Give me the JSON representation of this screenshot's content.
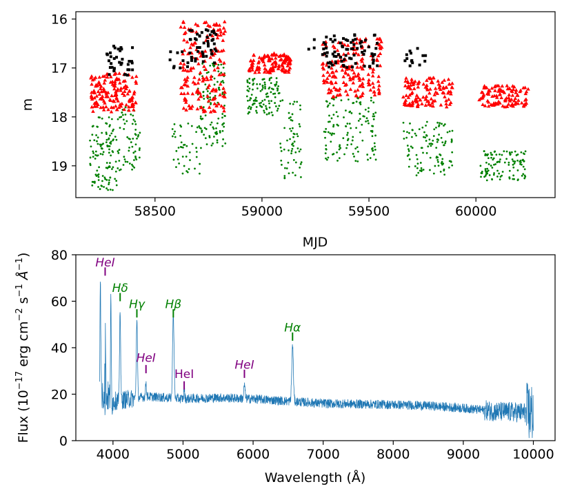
{
  "colors": {
    "black": "#000000",
    "red": "#ff0000",
    "green": "#008000",
    "spectrum": "#1f77b4",
    "purple": "#800080",
    "linegreen": "#008000"
  },
  "chart_data": [
    {
      "type": "scatter",
      "title": "",
      "xlabel": "MJD",
      "ylabel": "m",
      "xlim": [
        58130,
        60370
      ],
      "ylim": [
        19.65,
        15.85
      ],
      "y_inverted": true,
      "xticks": [
        "58500",
        "59000",
        "59500",
        "60000"
      ],
      "xtick_values": [
        58500,
        59000,
        59500,
        60000
      ],
      "yticks": [
        "16",
        "17",
        "18",
        "19"
      ],
      "ytick_values": [
        16,
        17,
        18,
        19
      ],
      "series": [
        {
          "name": "black",
          "marker": "square",
          "segments": [
            {
              "x0": 58275,
              "x1": 58395,
              "ylow": 16.55,
              "yhigh": 17.15,
              "n": 35
            },
            {
              "x0": 58565,
              "x1": 58665,
              "ylow": 16.6,
              "yhigh": 17.0,
              "n": 10
            },
            {
              "x0": 58655,
              "x1": 58790,
              "ylow": 16.2,
              "yhigh": 16.9,
              "n": 45
            },
            {
              "x0": 59195,
              "x1": 59290,
              "ylow": 16.4,
              "yhigh": 16.8,
              "n": 6
            },
            {
              "x0": 59290,
              "x1": 59545,
              "ylow": 16.3,
              "yhigh": 17.0,
              "n": 75
            },
            {
              "x0": 59660,
              "x1": 59770,
              "ylow": 16.6,
              "yhigh": 17.0,
              "n": 14
            }
          ]
        },
        {
          "name": "red",
          "marker": "triangle",
          "segments": [
            {
              "x0": 58200,
              "x1": 58415,
              "ylow": 17.1,
              "yhigh": 17.9,
              "n": 150
            },
            {
              "x0": 58620,
              "x1": 58830,
              "ylow": 16.05,
              "yhigh": 17.9,
              "n": 170
            },
            {
              "x0": 58935,
              "x1": 59135,
              "ylow": 16.7,
              "yhigh": 17.1,
              "n": 120
            },
            {
              "x0": 59280,
              "x1": 59560,
              "ylow": 16.4,
              "yhigh": 17.6,
              "n": 180
            },
            {
              "x0": 59660,
              "x1": 59895,
              "ylow": 17.2,
              "yhigh": 17.8,
              "n": 120
            },
            {
              "x0": 60015,
              "x1": 60245,
              "ylow": 17.35,
              "yhigh": 17.8,
              "n": 110
            }
          ]
        },
        {
          "name": "green",
          "marker": "dot",
          "segments": [
            {
              "x0": 58195,
              "x1": 58330,
              "ylow": 18.0,
              "yhigh": 19.5,
              "n": 120
            },
            {
              "x0": 58330,
              "x1": 58430,
              "ylow": 17.8,
              "yhigh": 19.1,
              "n": 60
            },
            {
              "x0": 58580,
              "x1": 58720,
              "ylow": 18.1,
              "yhigh": 19.2,
              "n": 45
            },
            {
              "x0": 58700,
              "x1": 58830,
              "ylow": 16.9,
              "yhigh": 18.6,
              "n": 110
            },
            {
              "x0": 58930,
              "x1": 59085,
              "ylow": 17.2,
              "yhigh": 18.0,
              "n": 110
            },
            {
              "x0": 59085,
              "x1": 59185,
              "ylow": 17.6,
              "yhigh": 19.3,
              "n": 60
            },
            {
              "x0": 59290,
              "x1": 59540,
              "ylow": 17.6,
              "yhigh": 18.95,
              "n": 130
            },
            {
              "x0": 59660,
              "x1": 59890,
              "ylow": 18.1,
              "yhigh": 19.2,
              "n": 110
            },
            {
              "x0": 60015,
              "x1": 60235,
              "ylow": 18.7,
              "yhigh": 19.3,
              "n": 110
            }
          ]
        }
      ]
    },
    {
      "type": "line",
      "title": "",
      "xlabel": "Wavelength (Å)",
      "ylabel": "Flux (10$^{-17}$ erg cm$^{-2}$ s$^{-1}$ Å$^{-1}$)",
      "ylabel_parts": {
        "prefix": "Flux (10",
        "exp1": "−17",
        "mid1": " erg cm",
        "exp2": "−2",
        "mid2": " s",
        "exp3": "−1",
        "unit": " Å",
        "exp4": "−1",
        "suffix": ")"
      },
      "xlim": [
        3470,
        10310
      ],
      "ylim": [
        0,
        80
      ],
      "xticks": [
        "4000",
        "5000",
        "6000",
        "7000",
        "8000",
        "9000",
        "10000"
      ],
      "xtick_values": [
        4000,
        5000,
        6000,
        7000,
        8000,
        9000,
        10000
      ],
      "yticks": [
        "0",
        "20",
        "40",
        "60",
        "80"
      ],
      "ytick_values": [
        0,
        20,
        40,
        60,
        80
      ],
      "continuum": [
        {
          "x": 3810,
          "y": 22
        },
        {
          "x": 4000,
          "y": 17
        },
        {
          "x": 4500,
          "y": 19
        },
        {
          "x": 5000,
          "y": 18
        },
        {
          "x": 5500,
          "y": 18.5
        },
        {
          "x": 6000,
          "y": 18
        },
        {
          "x": 6500,
          "y": 17
        },
        {
          "x": 7000,
          "y": 16
        },
        {
          "x": 8000,
          "y": 15.5
        },
        {
          "x": 8500,
          "y": 15
        },
        {
          "x": 9000,
          "y": 14
        },
        {
          "x": 9500,
          "y": 12.5
        },
        {
          "x": 10000,
          "y": 12
        }
      ],
      "emission_peaks": [
        {
          "x": 3820,
          "y": 68,
          "w": 8
        },
        {
          "x": 3889,
          "y": 59,
          "w": 8
        },
        {
          "x": 3970,
          "y": 58,
          "w": 8
        },
        {
          "x": 4102,
          "y": 58,
          "w": 10
        },
        {
          "x": 4341,
          "y": 53,
          "w": 12
        },
        {
          "x": 4471,
          "y": 25,
          "w": 10
        },
        {
          "x": 4861,
          "y": 56,
          "w": 14
        },
        {
          "x": 5016,
          "y": 22,
          "w": 10
        },
        {
          "x": 5876,
          "y": 24,
          "w": 12
        },
        {
          "x": 6563,
          "y": 41,
          "w": 16
        }
      ],
      "line_labels": [
        {
          "text": "HeI",
          "x": 3888,
          "tick_y": 71,
          "label_y": 75,
          "color": "purple",
          "italic": true
        },
        {
          "text": "Hδ",
          "x": 4102,
          "tick_y": 60,
          "label_y": 64,
          "color": "linegreen",
          "italic": true
        },
        {
          "text": "Hγ",
          "x": 4341,
          "tick_y": 53,
          "label_y": 57,
          "color": "linegreen",
          "italic": true
        },
        {
          "text": "Hβ",
          "x": 4861,
          "tick_y": 53,
          "label_y": 57,
          "color": "linegreen",
          "italic": true
        },
        {
          "text": "HeI",
          "x": 4471,
          "tick_y": 29,
          "label_y": 34,
          "color": "purple",
          "italic": true
        },
        {
          "text": "HeI",
          "x": 5016,
          "tick_y": 22,
          "label_y": 27,
          "color": "purple",
          "italic": false
        },
        {
          "text": "HeI",
          "x": 5876,
          "tick_y": 27,
          "label_y": 31,
          "color": "purple",
          "italic": true
        },
        {
          "text": "Hα",
          "x": 6563,
          "tick_y": 43,
          "label_y": 47,
          "color": "linegreen",
          "italic": true
        }
      ]
    }
  ]
}
